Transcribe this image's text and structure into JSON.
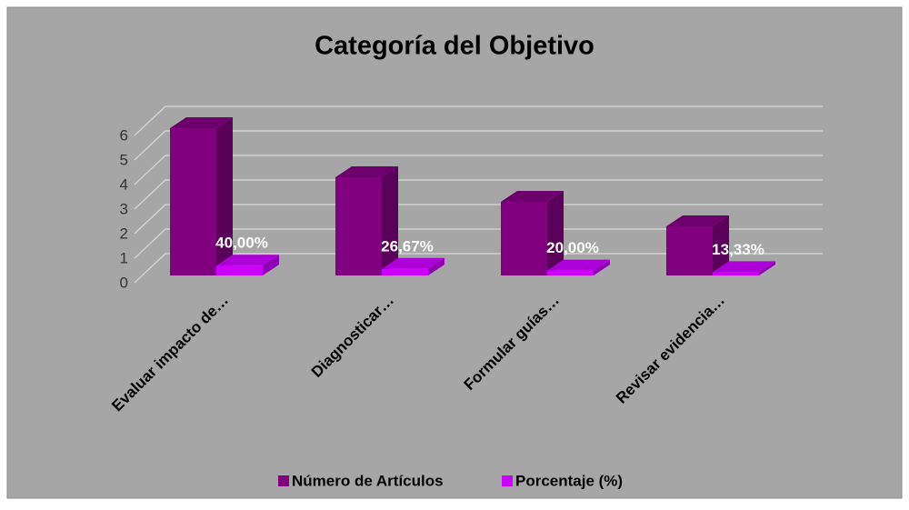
{
  "chart_data": {
    "type": "bar3d",
    "title": "Categoría del Objetivo",
    "categories": [
      "Evaluar impacto de…",
      "Diagnosticar…",
      "Formular guías…",
      "Revisar evidencia…"
    ],
    "series": [
      {
        "name": "Número de Artículos",
        "color": "#800080",
        "values": [
          6,
          4,
          3,
          2
        ]
      },
      {
        "name": "Porcentaje (%)",
        "color": "#cc00ff",
        "values": [
          0.4,
          0.2667,
          0.2,
          0.1333
        ],
        "value_labels": [
          "40,00%",
          "26,67%",
          "20,00%",
          "13,33%"
        ]
      }
    ],
    "ylim": [
      0,
      6
    ],
    "yticks": [
      0,
      1,
      2,
      3,
      4,
      5,
      6
    ],
    "grid": true,
    "legend": "bottom"
  }
}
